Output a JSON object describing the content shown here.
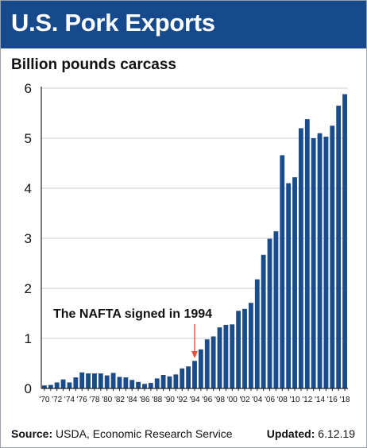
{
  "header": {
    "title": "U.S. Pork Exports",
    "subtitle": "Billion pounds carcass"
  },
  "footer": {
    "source_label": "Source:",
    "source_text": "USDA, Economic Research Service",
    "updated_label": "Updated:",
    "updated_text": "6.12.19"
  },
  "colors": {
    "title_bar": "#174a8c",
    "bars": "#1a4b8a",
    "annotation_arrow": "#e8503a"
  },
  "chart_data": {
    "type": "bar",
    "title": "U.S. Pork Exports",
    "ylabel": "Billion pounds carcass",
    "ylim": [
      0,
      6
    ],
    "yticks": [
      0,
      1,
      2,
      3,
      4,
      5,
      6
    ],
    "grid": true,
    "x_tick_labels": [
      "'70",
      "'72",
      "'74",
      "'76",
      "'78",
      "'80",
      "'82",
      "'84",
      "'86",
      "'88",
      "'90",
      "'92",
      "'94",
      "'96",
      "'98",
      "'00",
      "'02",
      "'04",
      "'06",
      "'08",
      "'10",
      "'12",
      "'14",
      "'16",
      "'18"
    ],
    "categories": [
      1970,
      1971,
      1972,
      1973,
      1974,
      1975,
      1976,
      1977,
      1978,
      1979,
      1980,
      1981,
      1982,
      1983,
      1984,
      1985,
      1986,
      1987,
      1988,
      1989,
      1990,
      1991,
      1992,
      1993,
      1994,
      1995,
      1996,
      1997,
      1998,
      1999,
      2000,
      2001,
      2002,
      2003,
      2004,
      2005,
      2006,
      2007,
      2008,
      2009,
      2010,
      2011,
      2012,
      2013,
      2014,
      2015,
      2016,
      2017,
      2018
    ],
    "values": [
      0.06,
      0.07,
      0.12,
      0.18,
      0.12,
      0.22,
      0.32,
      0.3,
      0.3,
      0.3,
      0.26,
      0.31,
      0.23,
      0.22,
      0.17,
      0.13,
      0.09,
      0.11,
      0.2,
      0.27,
      0.24,
      0.28,
      0.4,
      0.44,
      0.55,
      0.78,
      0.98,
      1.04,
      1.22,
      1.27,
      1.28,
      1.55,
      1.59,
      1.71,
      2.18,
      2.67,
      2.99,
      3.14,
      4.66,
      4.1,
      4.22,
      5.2,
      5.38,
      5.0,
      5.1,
      5.03,
      5.25,
      5.65,
      5.88
    ],
    "annotation": {
      "text": "The NAFTA signed in 1994",
      "x": 1994
    }
  }
}
